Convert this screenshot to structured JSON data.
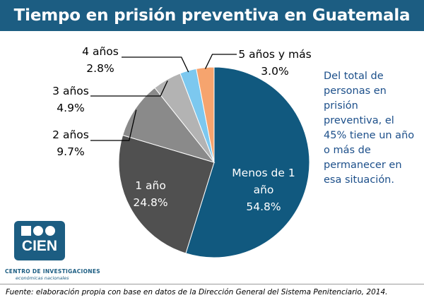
{
  "title": "Tiempo en prisión preventiva en Guatemala",
  "side_note": "Del total de personas en prisión preventiva, el 45% tiene un año o más de permanecer en esa situación.",
  "logo": {
    "text": "CIEN",
    "org_name": "CENTRO DE INVESTIGACIONES",
    "org_sub": "económicas nacionales"
  },
  "footer": "Fuente: elaboración propia con base en datos de la Dirección General del Sistema Penitenciario, 2014.",
  "colors": {
    "header": "#1c5d82",
    "slice_menos": "#11597f",
    "slice_1": "#505050",
    "slice_2": "#8a8a8a",
    "slice_3": "#b3b3b3",
    "slice_4": "#7cc8ef",
    "slice_5": "#f6a46e",
    "note": "#1c4f8a"
  },
  "chart_data": {
    "type": "pie",
    "title": "Tiempo en prisión preventiva en Guatemala",
    "slices": [
      {
        "label": "Menos de 1 año",
        "value": 54.8,
        "value_text": "54.8%"
      },
      {
        "label": "1 año",
        "value": 24.8,
        "value_text": "24.8%"
      },
      {
        "label": "2 años",
        "value": 9.7,
        "value_text": "9.7%"
      },
      {
        "label": "3 años",
        "value": 4.9,
        "value_text": "4.9%"
      },
      {
        "label": "4 años",
        "value": 2.8,
        "value_text": "2.8%"
      },
      {
        "label": "5 años y más",
        "value": 3.0,
        "value_text": "3.0%"
      }
    ]
  }
}
